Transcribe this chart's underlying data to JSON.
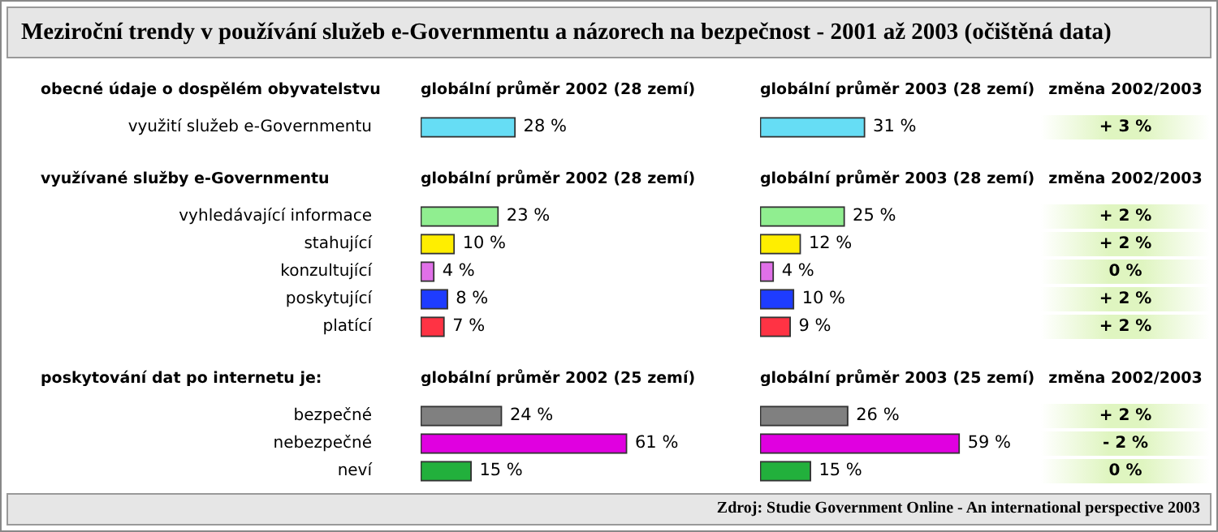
{
  "chart_data": [
    {
      "type": "other",
      "title": "Meziroční trendy v používání služeb e-Governmentu a názorech na bezpečnost - 2001 až 2003 (očištěná data)"
    },
    {
      "type": "bar",
      "orientation": "horizontal",
      "title": "globální průměr 2002 (28 zemí)",
      "ylabel": "obecné údaje o dospělém obyvatelstvu",
      "categories": [
        "využití služeb e-Governmentu"
      ],
      "colors": [
        "#66ddf5"
      ],
      "values": [
        28
      ],
      "value_labels": [
        "28 %"
      ]
    },
    {
      "type": "bar",
      "orientation": "horizontal",
      "title": "globální průměr 2003 (28 zemí)",
      "categories": [
        null
      ],
      "colors": [
        "#66ddf5"
      ],
      "values": [
        31
      ],
      "value_labels": [
        "31 %"
      ]
    },
    {
      "type": "other",
      "title": "změna 2002/2003",
      "annotations": [
        "+ 3 %"
      ]
    },
    {
      "type": "bar",
      "orientation": "horizontal",
      "title": "globální průměr 2002 (28 zemí)",
      "ylabel": "využívané služby e-Governmentu",
      "categories": [
        "vyhledávající informace",
        "stahující",
        "konzultující",
        "poskytující",
        "platící"
      ],
      "colors": [
        "#90ee90",
        "#ffee00",
        "#e070e8",
        "#1e3cff",
        "#ff3344"
      ],
      "values": [
        23,
        10,
        4,
        8,
        7
      ],
      "value_labels": [
        "23 %",
        "10 %",
        "4 %",
        "8 %",
        "7 %"
      ]
    },
    {
      "type": "bar",
      "orientation": "horizontal",
      "title": "globální průměr 2003 (28 zemí)",
      "categories": [
        null,
        null,
        null,
        null,
        null
      ],
      "colors": [
        "#90ee90",
        "#ffee00",
        "#e070e8",
        "#1e3cff",
        "#ff3344"
      ],
      "values": [
        25,
        12,
        4,
        10,
        9
      ],
      "value_labels": [
        "25 %",
        "12 %",
        "4 %",
        "10 %",
        "9 %"
      ]
    },
    {
      "type": "other",
      "title": "změna 2002/2003",
      "annotations": [
        "+ 2 %",
        "+ 2 %",
        "0 %",
        "+ 2 %",
        "+ 2 %"
      ]
    },
    {
      "type": "bar",
      "orientation": "horizontal",
      "title": "globální průměr 2002 (25 zemí)",
      "ylabel": "poskytování dat po internetu je:",
      "categories": [
        "bezpečné",
        "nebezpečné",
        "neví"
      ],
      "colors": [
        "#808080",
        "#e000e0",
        "#22b03c"
      ],
      "values": [
        24,
        61,
        15
      ],
      "value_labels": [
        "24 %",
        "61 %",
        "15 %"
      ]
    },
    {
      "type": "bar",
      "orientation": "horizontal",
      "title": "globální průměr 2003 (25 zemí)",
      "categories": [
        null,
        null,
        null
      ],
      "colors": [
        "#808080",
        "#e000e0",
        "#22b03c"
      ],
      "values": [
        26,
        59,
        15
      ],
      "value_labels": [
        "26 %",
        "59 %",
        "15 %"
      ]
    },
    {
      "type": "other",
      "title": "změna 2002/2003",
      "annotations": [
        "+ 2 %",
        "- 2 %",
        "0 %"
      ]
    },
    {
      "type": "other",
      "annotations": [
        "Zdroj: Studie Government Online - An international perspective 2003"
      ]
    }
  ]
}
